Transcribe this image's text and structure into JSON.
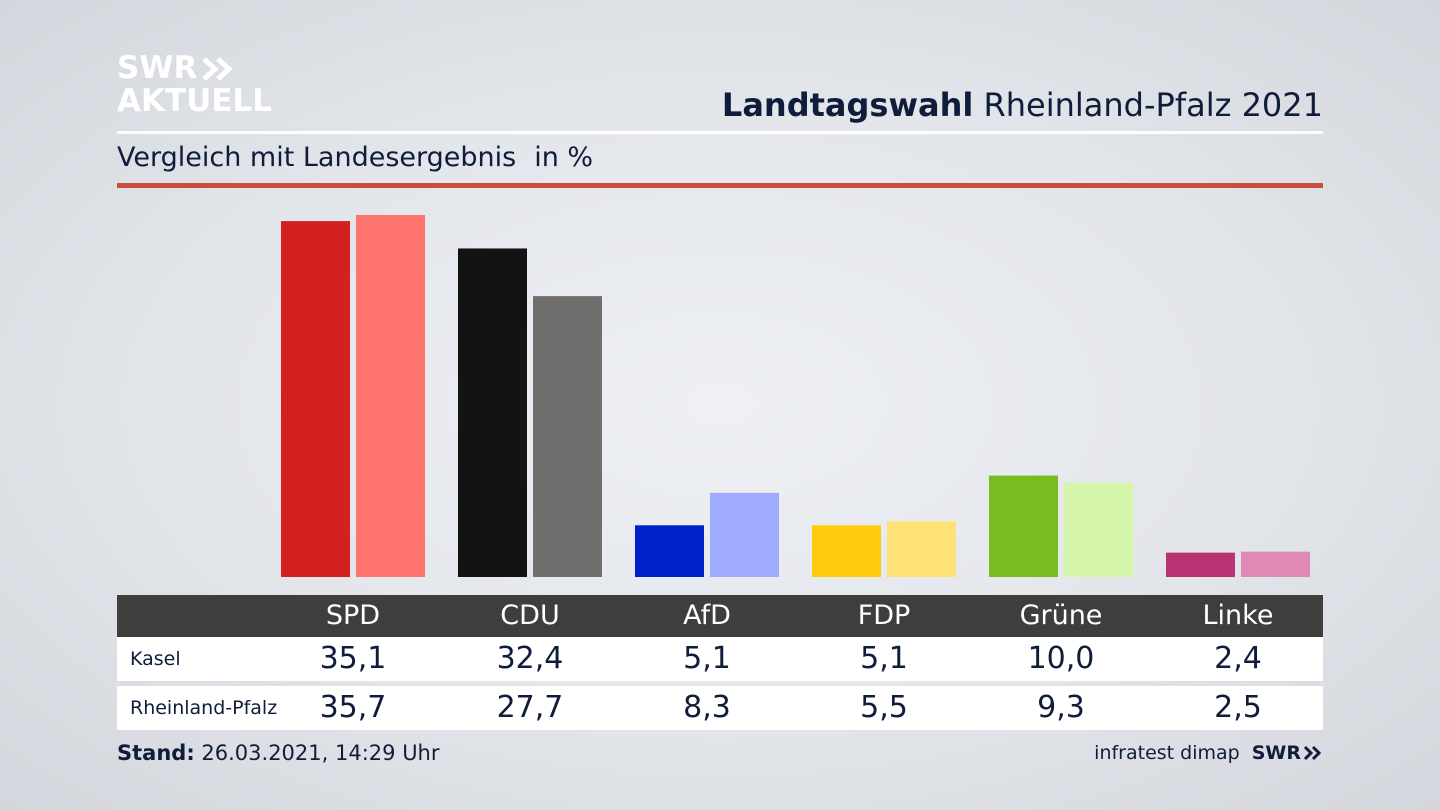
{
  "logo": {
    "line1": "SWR",
    "line2": "AKTUELL"
  },
  "header": {
    "title_bold": "Landtagswahl",
    "title_rest": "Rheinland-Pfalz 2021",
    "subtitle": "Vergleich mit Landesergebnis",
    "unit": "in %"
  },
  "colors": {
    "primary": [
      "#d52020",
      "#131313",
      "#0021c7",
      "#ffcb0a",
      "#78bc1f",
      "#b93272"
    ],
    "secondary": [
      "#ff746d",
      "#706f6d",
      "#9eabff",
      "#ffe276",
      "#d5f5ab",
      "#e089b6"
    ],
    "accent_rule": "#cf4b3c",
    "table_header": "#3e3e3c"
  },
  "chart_data": {
    "type": "bar",
    "categories": [
      "SPD",
      "CDU",
      "AfD",
      "FDP",
      "Grüne",
      "Linke"
    ],
    "series": [
      {
        "name": "Kasel",
        "values": [
          35.1,
          32.4,
          5.1,
          5.1,
          10.0,
          2.4
        ]
      },
      {
        "name": "Rheinland-Pfalz",
        "values": [
          35.7,
          27.7,
          8.3,
          5.5,
          9.3,
          2.5
        ]
      }
    ],
    "title": "Landtagswahl Rheinland-Pfalz 2021",
    "subtitle": "Vergleich mit Landesergebnis",
    "ylabel": "in %",
    "ylim": [
      0,
      35.7
    ],
    "grid": false
  },
  "table": {
    "rows": [
      {
        "label": "Kasel",
        "values": [
          "35,1",
          "32,4",
          "5,1",
          "5,1",
          "10,0",
          "2,4"
        ]
      },
      {
        "label": "Rheinland-Pfalz",
        "values": [
          "35,7",
          "27,7",
          "8,3",
          "5,5",
          "9,3",
          "2,5"
        ]
      }
    ]
  },
  "footer": {
    "stand_label": "Stand:",
    "stand_value": "26.03.2021, 14:29 Uhr",
    "source": "infratest dimap",
    "brand": "SWR"
  }
}
